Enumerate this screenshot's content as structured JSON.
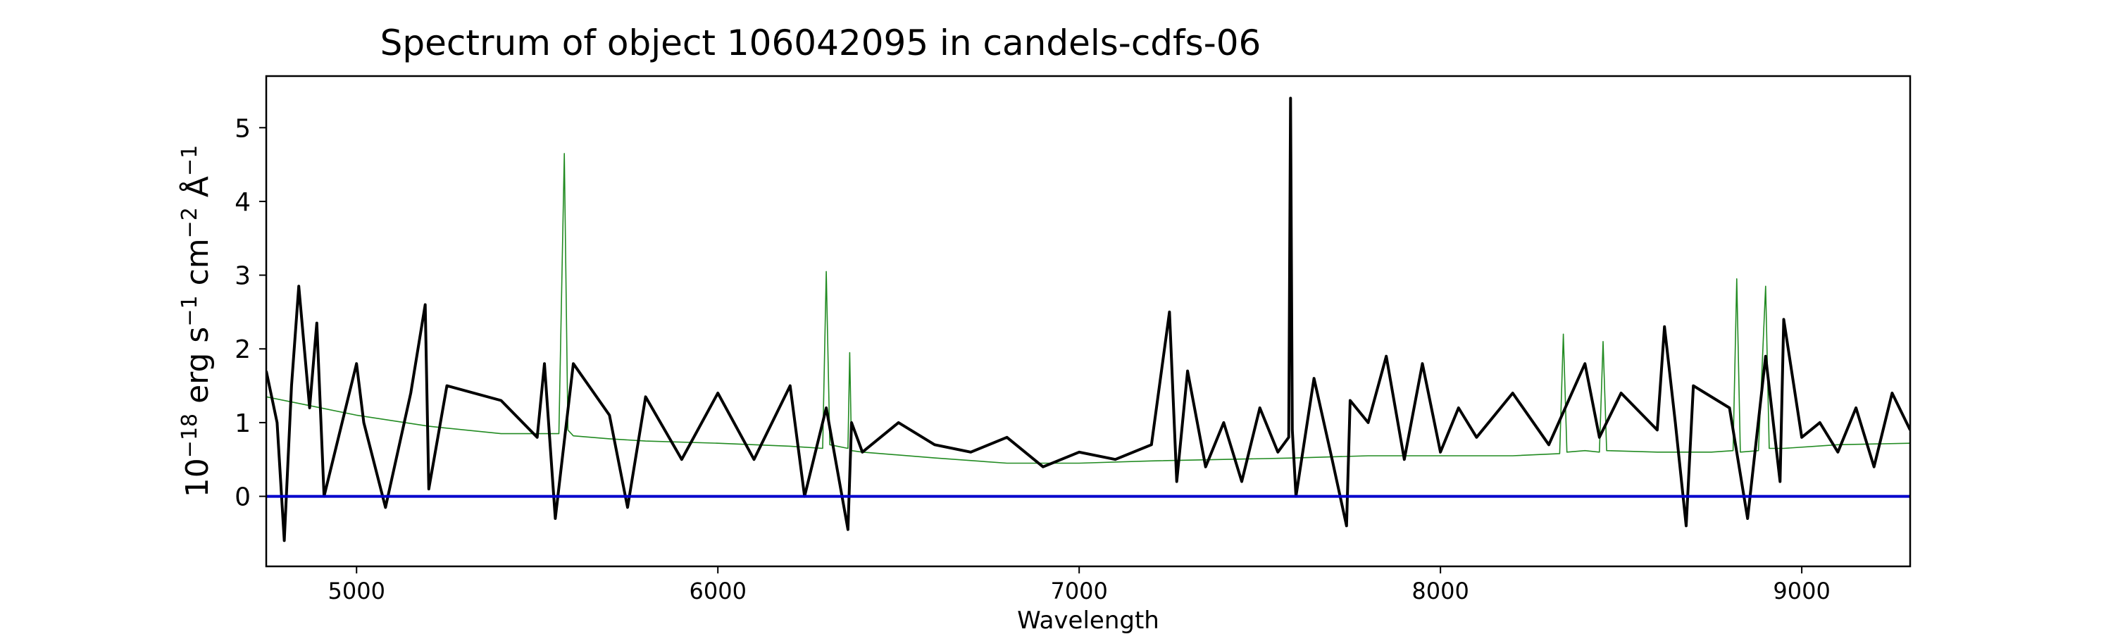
{
  "chart_data": {
    "type": "line",
    "title": "Spectrum of object 106042095 in candels-cdfs-06",
    "xlabel": "Wavelength",
    "ylabel": {
      "base": "10",
      "exp1": "−18",
      "erg": " erg s",
      "exp2": "−1",
      "cm": " cm",
      "exp3": "−2",
      "ang": " Å",
      "exp4": "−1"
    },
    "xlim": [
      4750,
      9300
    ],
    "ylim": [
      -0.95,
      5.7
    ],
    "x_ticks": [
      5000,
      6000,
      7000,
      8000,
      9000
    ],
    "x_tick_labels": [
      "5000",
      "6000",
      "7000",
      "8000",
      "9000"
    ],
    "y_ticks": [
      0,
      1,
      2,
      3,
      4,
      5
    ],
    "y_tick_labels": [
      "0",
      "1",
      "2",
      "3",
      "4",
      "5"
    ],
    "grid": false,
    "legend": "none",
    "series": [
      {
        "color": "#228b22",
        "style": "thin",
        "x": [
          4750,
          4850,
          5000,
          5200,
          5400,
          5560,
          5575,
          5585,
          5600,
          5700,
          5800,
          6000,
          6200,
          6290,
          6300,
          6310,
          6360,
          6365,
          6370,
          6400,
          6600,
          6800,
          7000,
          7200,
          7400,
          7600,
          7800,
          8000,
          8200,
          8330,
          8340,
          8350,
          8400,
          8440,
          8450,
          8460,
          8600,
          8750,
          8810,
          8820,
          8830,
          8880,
          8900,
          8910,
          8950,
          9100,
          9300
        ],
        "y": [
          1.35,
          1.25,
          1.1,
          0.95,
          0.85,
          0.85,
          4.65,
          0.9,
          0.82,
          0.78,
          0.75,
          0.72,
          0.68,
          0.65,
          3.05,
          0.7,
          0.65,
          1.95,
          0.62,
          0.6,
          0.52,
          0.45,
          0.45,
          0.48,
          0.5,
          0.52,
          0.55,
          0.55,
          0.55,
          0.58,
          2.2,
          0.6,
          0.62,
          0.6,
          2.1,
          0.62,
          0.6,
          0.6,
          0.62,
          2.95,
          0.6,
          0.62,
          2.85,
          0.65,
          0.65,
          0.7,
          0.72
        ]
      },
      {
        "color": "#000000",
        "style": "thick",
        "x": [
          4750,
          4780,
          4800,
          4820,
          4840,
          4870,
          4890,
          4910,
          5000,
          5020,
          5080,
          5150,
          5190,
          5200,
          5250,
          5400,
          5500,
          5520,
          5550,
          5600,
          5700,
          5750,
          5800,
          5900,
          6000,
          6100,
          6200,
          6240,
          6300,
          6360,
          6370,
          6400,
          6500,
          6600,
          6700,
          6800,
          6900,
          7000,
          7100,
          7200,
          7250,
          7270,
          7300,
          7350,
          7400,
          7450,
          7500,
          7550,
          7580,
          7585,
          7590,
          7600,
          7650,
          7700,
          7740,
          7750,
          7800,
          7850,
          7900,
          7950,
          8000,
          8050,
          8100,
          8200,
          8300,
          8400,
          8440,
          8500,
          8600,
          8620,
          8650,
          8680,
          8700,
          8800,
          8850,
          8900,
          8940,
          8950,
          9000,
          9050,
          9100,
          9150,
          9200,
          9250,
          9300
        ],
        "y": [
          1.7,
          1.0,
          -0.6,
          1.5,
          2.85,
          1.2,
          2.35,
          0.0,
          1.8,
          1.0,
          -0.15,
          1.4,
          2.6,
          0.1,
          1.5,
          1.3,
          0.8,
          1.8,
          -0.3,
          1.8,
          1.1,
          -0.15,
          1.35,
          0.5,
          1.4,
          0.5,
          1.5,
          0.0,
          1.2,
          -0.45,
          1.0,
          0.6,
          1.0,
          0.7,
          0.6,
          0.8,
          0.4,
          0.6,
          0.5,
          0.7,
          2.5,
          0.2,
          1.7,
          0.4,
          1.0,
          0.2,
          1.2,
          0.6,
          0.8,
          5.4,
          0.9,
          0.0,
          1.6,
          0.5,
          -0.4,
          1.3,
          1.0,
          1.9,
          0.5,
          1.8,
          0.6,
          1.2,
          0.8,
          1.4,
          0.7,
          1.8,
          0.8,
          1.4,
          0.9,
          2.3,
          1.0,
          -0.4,
          1.5,
          1.2,
          -0.3,
          1.9,
          0.2,
          2.4,
          0.8,
          1.0,
          0.6,
          1.2,
          0.4,
          1.4,
          0.9
        ]
      },
      {
        "color": "#0000cc",
        "style": "baseline",
        "x": [
          4750,
          9300
        ],
        "y": [
          0,
          0
        ]
      }
    ]
  }
}
